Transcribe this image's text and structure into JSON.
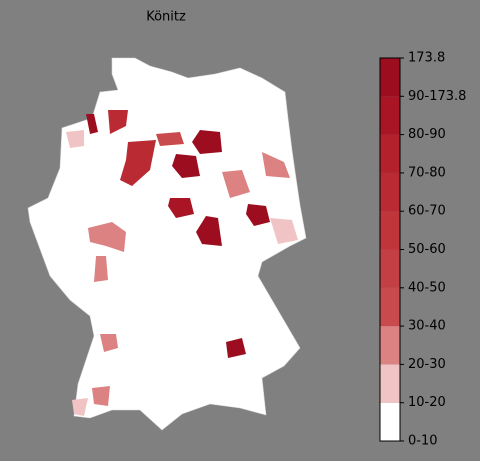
{
  "title": "Könitz",
  "legend": {
    "labels": [
      "0-10",
      "10-20",
      "20-30",
      "30-40",
      "40-50",
      "50-60",
      "60-70",
      "70-80",
      "80-90",
      "90-173.8",
      "173.8"
    ],
    "colors": [
      "#ffffff",
      "#f0c4c4",
      "#dc8282",
      "#c94a4c",
      "#c43f43",
      "#bf353a",
      "#b92a32",
      "#b3212c",
      "#a91525",
      "#9c0d20"
    ]
  }
}
